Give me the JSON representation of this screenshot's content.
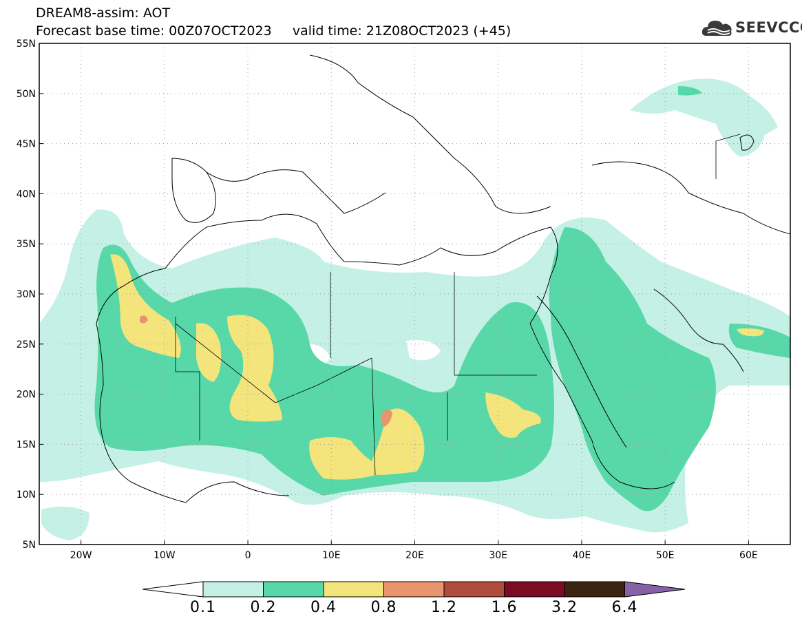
{
  "title": {
    "line1": "DREAM8-assim: AOT",
    "line2": "Forecast base time: 00Z07OCT2023     valid time: 21Z08OCT2023 (+45)"
  },
  "logo": {
    "text": "SEEVCCC",
    "icon": "cloud-icon"
  },
  "map": {
    "lon_range": [
      -25,
      65
    ],
    "lat_range": [
      5,
      55
    ],
    "lat_ticks": [
      "55N",
      "50N",
      "45N",
      "40N",
      "35N",
      "30N",
      "25N",
      "20N",
      "15N",
      "10N",
      "5N"
    ],
    "lon_ticks": [
      "20W",
      "10W",
      "0",
      "10E",
      "20E",
      "30E",
      "40E",
      "50E",
      "60E"
    ],
    "grid": true
  },
  "colorbar": {
    "labels": [
      "0.1",
      "0.2",
      "0.4",
      "0.8",
      "1.2",
      "1.6",
      "3.2",
      "6.4"
    ],
    "colors": [
      "#ffffff",
      "#c4f0e6",
      "#58d8a8",
      "#f4e47c",
      "#e8946c",
      "#b04c3c",
      "#7c0c24",
      "#3c2410",
      "#8860a8"
    ]
  }
}
